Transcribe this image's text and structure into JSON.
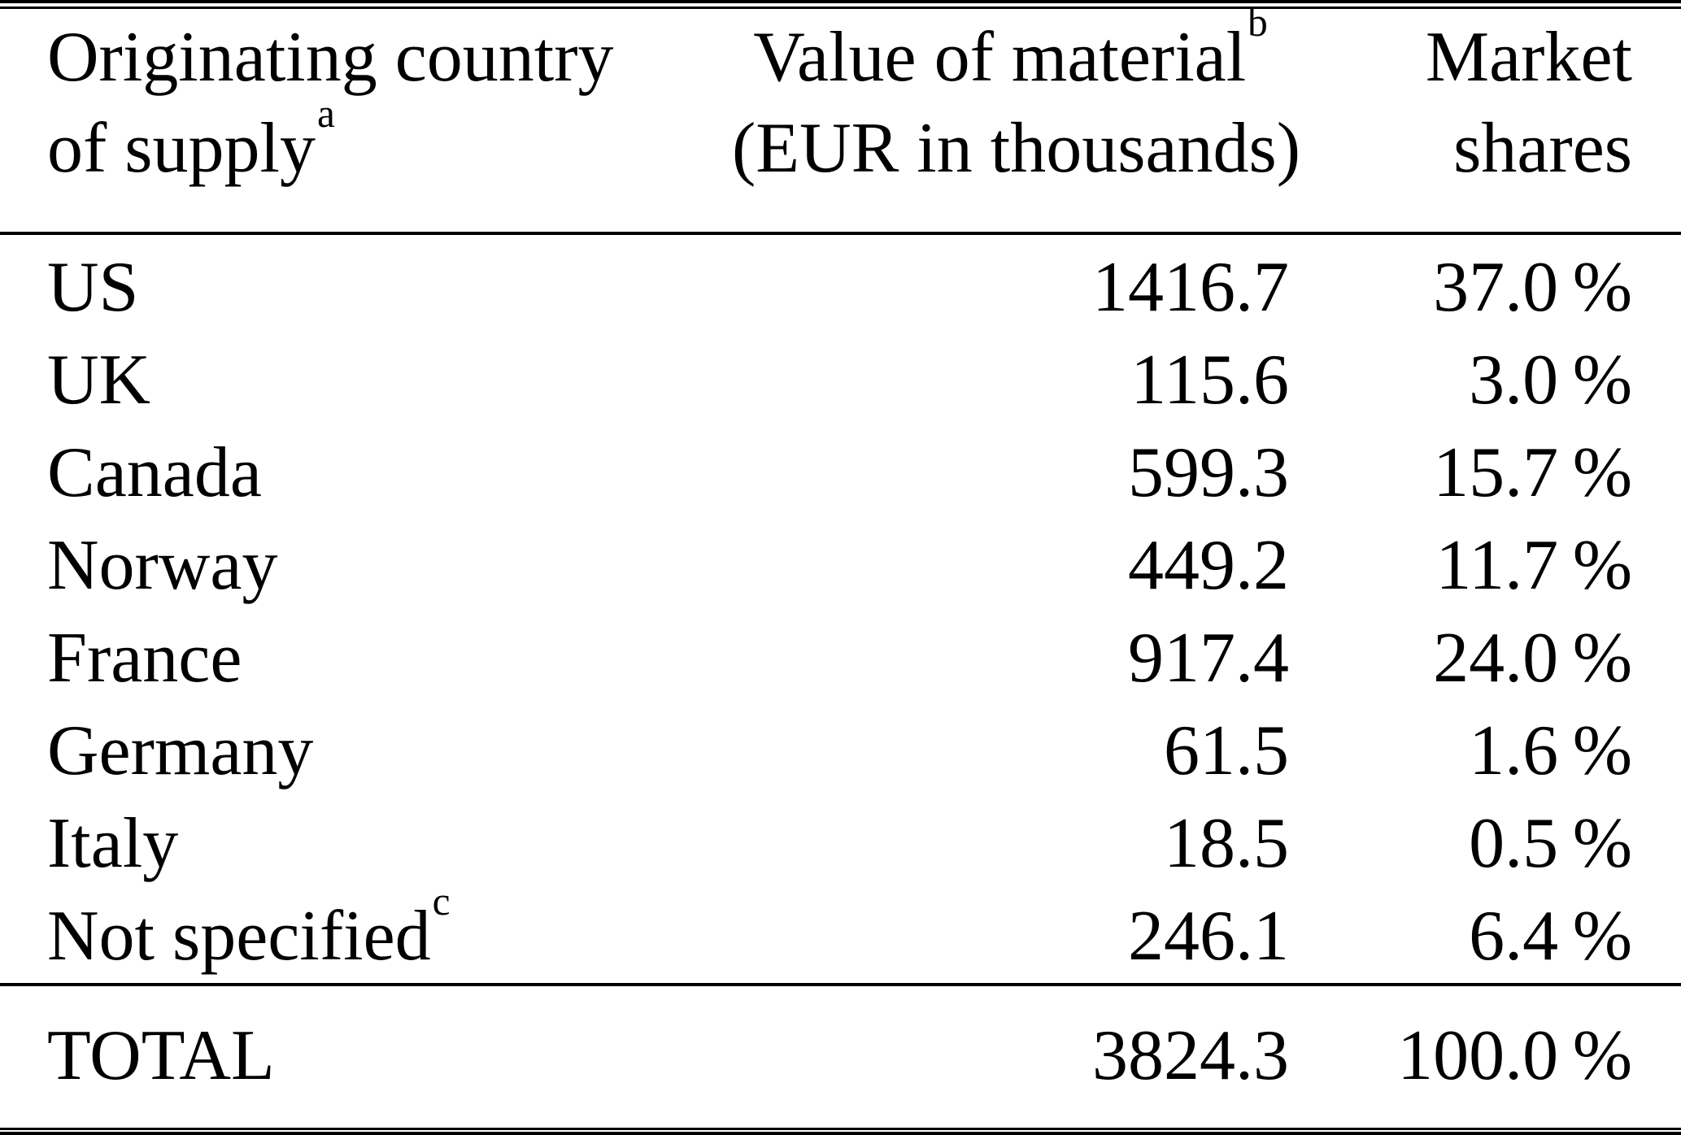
{
  "table": {
    "header": {
      "col1_line1": "Originating country",
      "col1_line2": "of supply",
      "col1_sup": "a",
      "col2_line1": "Value of material",
      "col2_sup": "b",
      "col2_line2": "(EUR in thousands)",
      "col3_line1": "Market",
      "col3_line2": "shares"
    },
    "rows": [
      {
        "country": "US",
        "sup": "",
        "value": "1416.7",
        "share": "37.0 %"
      },
      {
        "country": "UK",
        "sup": "",
        "value": "115.6",
        "share": "3.0 %"
      },
      {
        "country": "Canada",
        "sup": "",
        "value": "599.3",
        "share": "15.7 %"
      },
      {
        "country": "Norway",
        "sup": "",
        "value": "449.2",
        "share": "11.7 %"
      },
      {
        "country": "France",
        "sup": "",
        "value": "917.4",
        "share": "24.0 %"
      },
      {
        "country": "Germany",
        "sup": "",
        "value": "61.5",
        "share": "1.6 %"
      },
      {
        "country": "Italy",
        "sup": "",
        "value": "18.5",
        "share": "0.5 %"
      },
      {
        "country": "Not specified",
        "sup": "c",
        "value": "246.1",
        "share": "6.4 %"
      }
    ],
    "total": {
      "label": "TOTAL",
      "value": "3824.3",
      "share": "100.0 %"
    }
  },
  "colors": {
    "background": "#ffffff",
    "text": "#000000",
    "rule": "#000000"
  }
}
